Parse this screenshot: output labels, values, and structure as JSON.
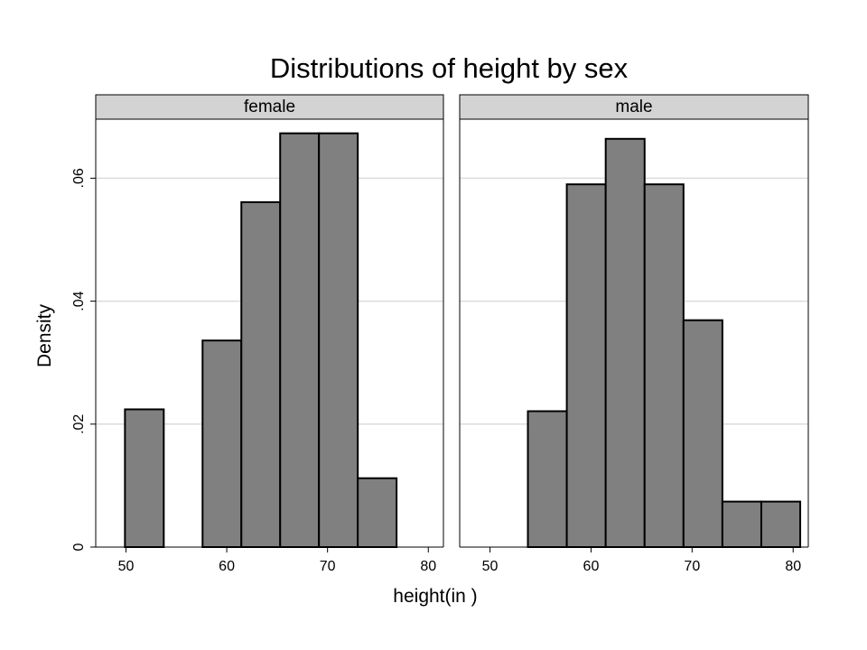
{
  "chart_data": {
    "type": "bar",
    "title": "Distributions of height by sex",
    "xlabel": "height(in )",
    "ylabel": "Density",
    "grid": true,
    "panel_label_background": "#d3d3d3",
    "bar_color": "#808080",
    "bar_edge_color": "#000000",
    "xlim": [
      47,
      81.5
    ],
    "ylim": [
      0,
      0.0696
    ],
    "x_ticks": [
      50,
      60,
      70,
      80
    ],
    "y_ticks": [
      0,
      0.02,
      0.04,
      0.06
    ],
    "x_tick_labels": [
      "50",
      "60",
      "70",
      "80"
    ],
    "y_tick_labels": [
      "0",
      ".02",
      ".04",
      ".06"
    ],
    "bin_width": 3.85,
    "panels": [
      {
        "name": "female",
        "bins": [
          {
            "x0": 49.9,
            "x1": 53.75,
            "density": 0.0224
          },
          {
            "x0": 53.75,
            "x1": 57.6,
            "density": 0
          },
          {
            "x0": 57.6,
            "x1": 61.45,
            "density": 0.0336
          },
          {
            "x0": 61.45,
            "x1": 65.3,
            "density": 0.0561
          },
          {
            "x0": 65.3,
            "x1": 69.15,
            "density": 0.0673
          },
          {
            "x0": 69.15,
            "x1": 73.0,
            "density": 0.0673
          },
          {
            "x0": 73.0,
            "x1": 76.85,
            "density": 0.0112
          }
        ]
      },
      {
        "name": "male",
        "bins": [
          {
            "x0": 53.75,
            "x1": 57.6,
            "density": 0.0221
          },
          {
            "x0": 57.6,
            "x1": 61.45,
            "density": 0.059
          },
          {
            "x0": 61.45,
            "x1": 65.3,
            "density": 0.0664
          },
          {
            "x0": 65.3,
            "x1": 69.15,
            "density": 0.059
          },
          {
            "x0": 69.15,
            "x1": 73.0,
            "density": 0.0369
          },
          {
            "x0": 73.0,
            "x1": 76.85,
            "density": 0.0074
          },
          {
            "x0": 76.85,
            "x1": 80.7,
            "density": 0.0074
          }
        ]
      }
    ]
  }
}
